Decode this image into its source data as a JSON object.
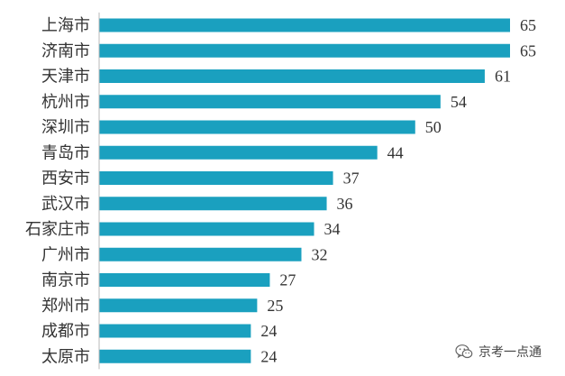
{
  "chart_data": {
    "type": "bar",
    "orientation": "horizontal",
    "categories": [
      "上海市",
      "济南市",
      "天津市",
      "杭州市",
      "深圳市",
      "青岛市",
      "西安市",
      "武汉市",
      "石家庄市",
      "广州市",
      "南京市",
      "郑州市",
      "成都市",
      "太原市"
    ],
    "values": [
      65,
      65,
      61,
      54,
      50,
      44,
      37,
      36,
      34,
      32,
      27,
      25,
      24,
      24
    ],
    "title": "",
    "xlabel": "",
    "ylabel": "",
    "xlim": [
      0,
      65
    ],
    "grid": false,
    "legend": "none",
    "bar_color": "#1aa0bf",
    "axis_color": "#b8b8b8"
  },
  "watermark": {
    "text": "京考一点通",
    "icon": "wechat-icon"
  }
}
